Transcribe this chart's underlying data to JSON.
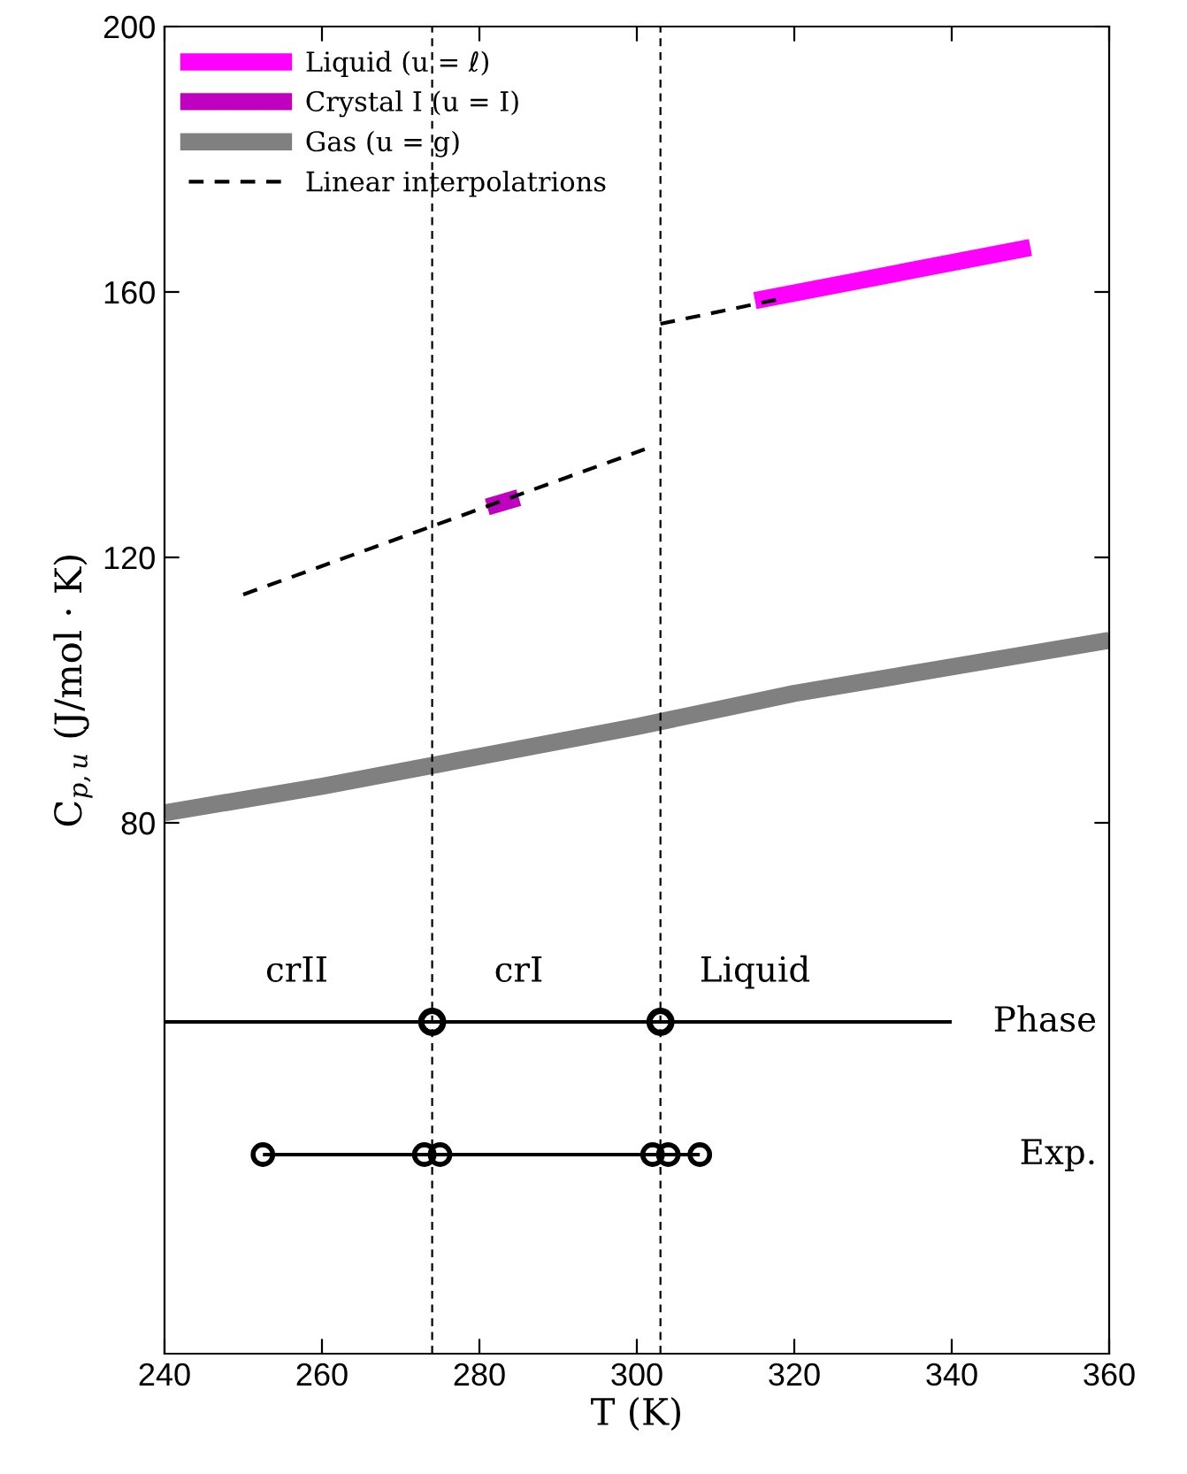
{
  "chart_data": {
    "type": "line",
    "xlabel": "T (K)",
    "ylabel": "C$_{p,u}$ (J/mol · K)",
    "xlim": [
      240,
      360
    ],
    "xticks": [
      240,
      260,
      280,
      300,
      320,
      340,
      360
    ],
    "ylim": [
      0,
      200
    ],
    "yticks": [
      80,
      120,
      160,
      200
    ],
    "grid": false,
    "legend": "top left",
    "series": [
      {
        "name": "Liquid (u = ℓ)",
        "color": "#ff00ff",
        "x": [
          315,
          350
        ],
        "values": [
          158.7,
          166.7
        ]
      },
      {
        "name": "Crystal I (u = I)",
        "color": "#bf00bf",
        "x": [
          281,
          285
        ],
        "values": [
          127.6,
          129.0
        ]
      },
      {
        "name": "Gas (u = g)",
        "color": "#808080",
        "x": [
          240,
          260,
          280,
          300,
          320,
          340,
          360
        ],
        "values": [
          81.5,
          85.5,
          90,
          94.5,
          99.5,
          103.5,
          107.5
        ]
      },
      {
        "name": "Linear interpolatrions",
        "color": "#000000",
        "line_style": "dashed",
        "x": [
          250,
          301
        ],
        "values": [
          114.4,
          136.3
        ]
      },
      {
        "color": "#000000",
        "line_style": "dashed",
        "x": [
          303,
          318
        ],
        "values": [
          155.2,
          158.9
        ]
      },
      {
        "color": "#000000",
        "x": [
          240,
          340
        ],
        "values": [
          50,
          50
        ]
      },
      {
        "type": "scatter",
        "color": "#000000",
        "marker": "circle",
        "x": [
          274,
          303
        ],
        "values": [
          50,
          50
        ]
      },
      {
        "color": "#000000",
        "marker": "circle",
        "x": [
          252.5,
          273,
          275,
          302,
          304,
          308
        ],
        "values": [
          30,
          30,
          30,
          30,
          30,
          30
        ]
      }
    ],
    "ref_lines": [
      {
        "axis": "x",
        "value": 274,
        "line_style": "dashed",
        "color": "#000000"
      },
      {
        "axis": "x",
        "value": 303,
        "line_style": "dashed",
        "color": "#000000"
      }
    ],
    "annotations": [
      "crII",
      "crI",
      "Liquid",
      "Phase",
      "Exp."
    ]
  }
}
